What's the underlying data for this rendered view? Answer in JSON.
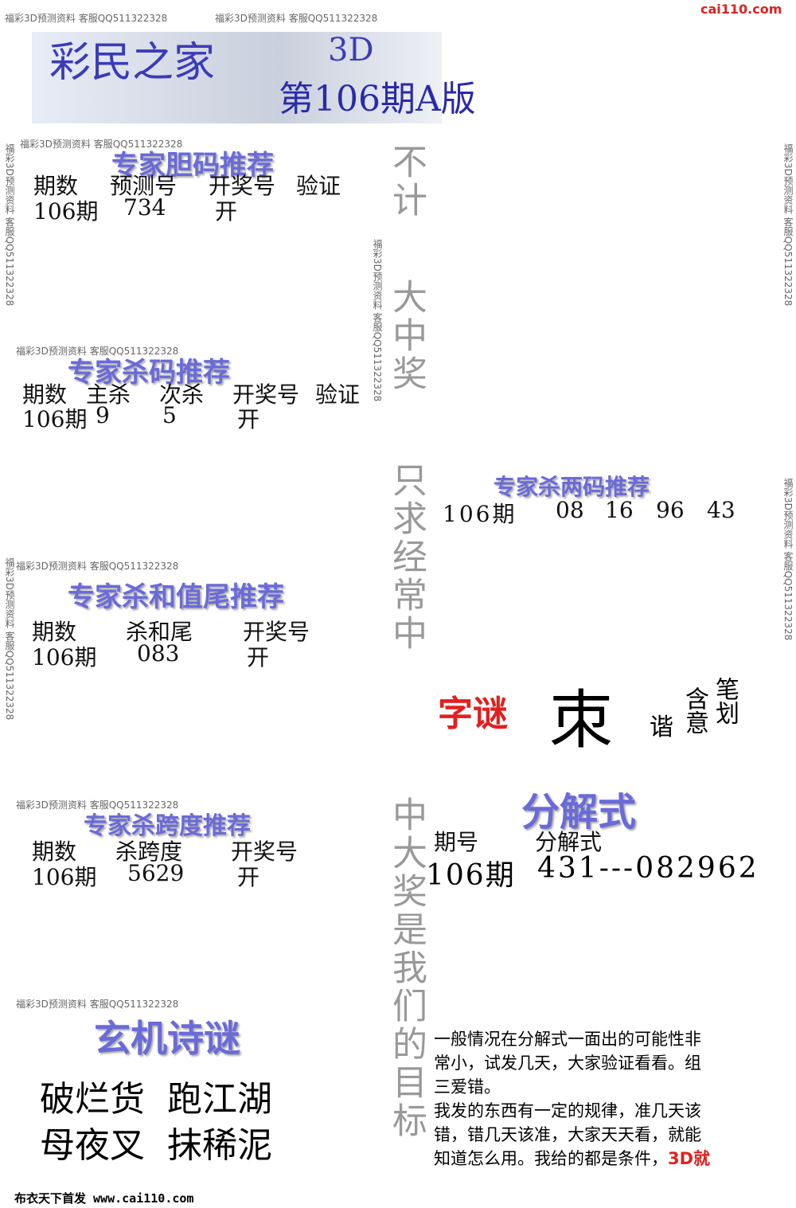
{
  "header": {
    "brand": "彩民之家",
    "game": "3D",
    "issue": "第106期A版",
    "site": "cai110.com"
  },
  "watermark": "福彩3D预测资料 客服QQ511322328",
  "dan": {
    "title": "专家胆码推荐",
    "headers": [
      "期数",
      "预测号",
      "开奖号",
      "验证"
    ],
    "row": [
      "106期",
      "734",
      "开"
    ]
  },
  "sha": {
    "title": "专家杀码推荐",
    "headers": [
      "期数",
      "主杀",
      "次杀",
      "开奖号",
      "验证"
    ],
    "row": [
      "106期",
      "9",
      "5",
      "开"
    ]
  },
  "liangma": {
    "title": "专家杀两码推荐",
    "row": [
      "106期",
      "08",
      "16",
      "96",
      "43"
    ]
  },
  "hewei": {
    "title": "专家杀和值尾推荐",
    "headers": [
      "期数",
      "杀和尾",
      "开奖号"
    ],
    "row": [
      "106期",
      "083",
      "开"
    ]
  },
  "riddle": {
    "title": "字谜",
    "char": "朿",
    "labels": [
      "笔划",
      "含意",
      "谐"
    ]
  },
  "fenjie": {
    "title": "分解式",
    "headers": [
      "期号",
      "分解式"
    ],
    "row": [
      "106期",
      "431---082962"
    ]
  },
  "kuadu": {
    "title": "专家杀跨度推荐",
    "headers": [
      "期数",
      "杀跨度",
      "开奖号"
    ],
    "row": [
      "106期",
      "5629",
      "开"
    ]
  },
  "poem": {
    "title": "玄机诗谜",
    "lines": [
      "破烂货  跑江湖",
      "母夜叉  抹稀泥"
    ]
  },
  "slogan": [
    "不计",
    "大中奖",
    "只求经常中",
    "中大奖是我们的目标"
  ],
  "note": {
    "lines": [
      "一般情况在分解式一面出的可能性非",
      "常小，试发几天，大家验证看看。组",
      "三爱错。",
      "我发的东西有一定的规律，准几天该",
      "错，错几天该准，大家天天看，就能",
      "知道怎么用。我给的都是条件，"
    ],
    "highlight": "3D就"
  },
  "footer": "布衣天下首发 www.cai110.com"
}
